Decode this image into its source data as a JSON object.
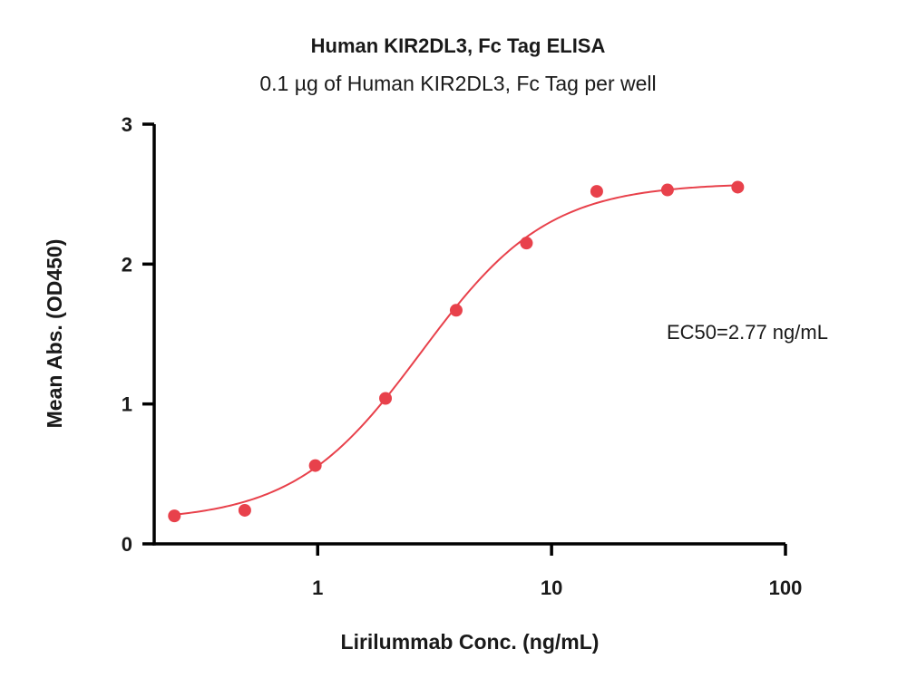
{
  "chart_data": {
    "type": "scatter",
    "title": "Human KIR2DL3, Fc Tag ELISA",
    "subtitle": "0.1 µg of Human KIR2DL3, Fc Tag per well",
    "xlabel": "Lirilummab Conc. (ng/mL)",
    "ylabel": "Mean Abs. (OD450)",
    "x_scale": "log",
    "xlim": [
      0.2,
      100
    ],
    "ylim": [
      0,
      3
    ],
    "x_ticks": [
      {
        "value": 1,
        "label": "1"
      },
      {
        "value": 10,
        "label": "10"
      },
      {
        "value": 100,
        "label": "100"
      }
    ],
    "y_ticks": [
      {
        "value": 0,
        "label": "0"
      },
      {
        "value": 1,
        "label": "1"
      },
      {
        "value": 2,
        "label": "2"
      },
      {
        "value": 3,
        "label": "3"
      }
    ],
    "grid": false,
    "color": "#e8414b",
    "series": [
      {
        "x": [
          0.244,
          0.488,
          0.977,
          1.95,
          3.91,
          7.81,
          15.6,
          31.3,
          62.5
        ],
        "y": [
          0.2,
          0.24,
          0.56,
          1.04,
          1.67,
          2.15,
          2.52,
          2.53,
          2.55
        ]
      }
    ],
    "fit": {
      "bottom": 0.16,
      "top": 2.58,
      "ec50": 2.77,
      "hill": 1.6
    },
    "annotation": "EC50=2.77 ng/mL"
  }
}
